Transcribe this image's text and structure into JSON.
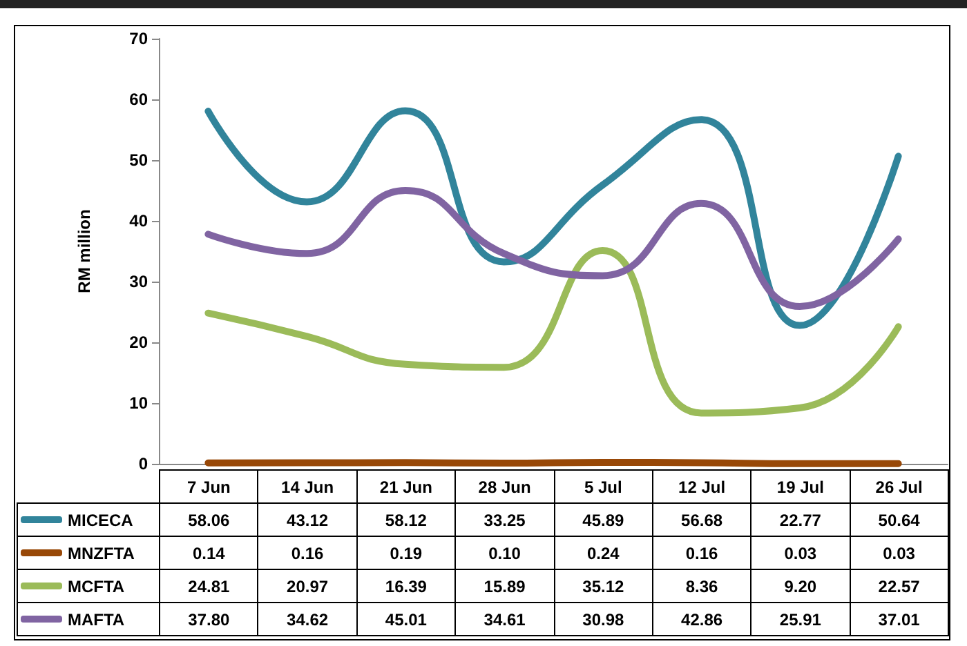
{
  "chart_data": {
    "type": "line",
    "ylabel": "RM million",
    "categories": [
      "7 Jun",
      "14 Jun",
      "21 Jun",
      "28 Jun",
      "5 Jul",
      "12 Jul",
      "19 Jul",
      "26 Jul"
    ],
    "series": [
      {
        "name": "MICECA",
        "color": "#31849b",
        "values": [
          58.06,
          43.12,
          58.12,
          33.25,
          45.89,
          56.68,
          22.77,
          50.64
        ],
        "value_labels": [
          "58.06",
          "43.12",
          "58.12",
          "33.25",
          "45.89",
          "56.68",
          "22.77",
          "50.64"
        ]
      },
      {
        "name": "MNZFTA",
        "color": "#984807",
        "values": [
          0.14,
          0.16,
          0.19,
          0.1,
          0.24,
          0.16,
          0.03,
          0.03
        ],
        "value_labels": [
          "0.14",
          "0.16",
          "0.19",
          "0.10",
          "0.24",
          "0.16",
          "0.03",
          "0.03"
        ]
      },
      {
        "name": "MCFTA",
        "color": "#9bbb59",
        "values": [
          24.81,
          20.97,
          16.39,
          15.89,
          35.12,
          8.36,
          9.2,
          22.57
        ],
        "value_labels": [
          "24.81",
          "20.97",
          "16.39",
          "15.89",
          "35.12",
          "8.36",
          "9.20",
          "22.57"
        ]
      },
      {
        "name": "MAFTA",
        "color": "#8064a2",
        "values": [
          37.8,
          34.62,
          45.01,
          34.61,
          30.98,
          42.86,
          25.91,
          37.01
        ],
        "value_labels": [
          "37.80",
          "34.62",
          "45.01",
          "34.61",
          "30.98",
          "42.86",
          "25.91",
          "37.01"
        ]
      }
    ],
    "ylim": [
      0,
      70
    ],
    "yticks": [
      0,
      10,
      20,
      30,
      40,
      50,
      60,
      70
    ],
    "grid": false,
    "legend": "bottom",
    "marker": "none",
    "line_style": "solid"
  }
}
